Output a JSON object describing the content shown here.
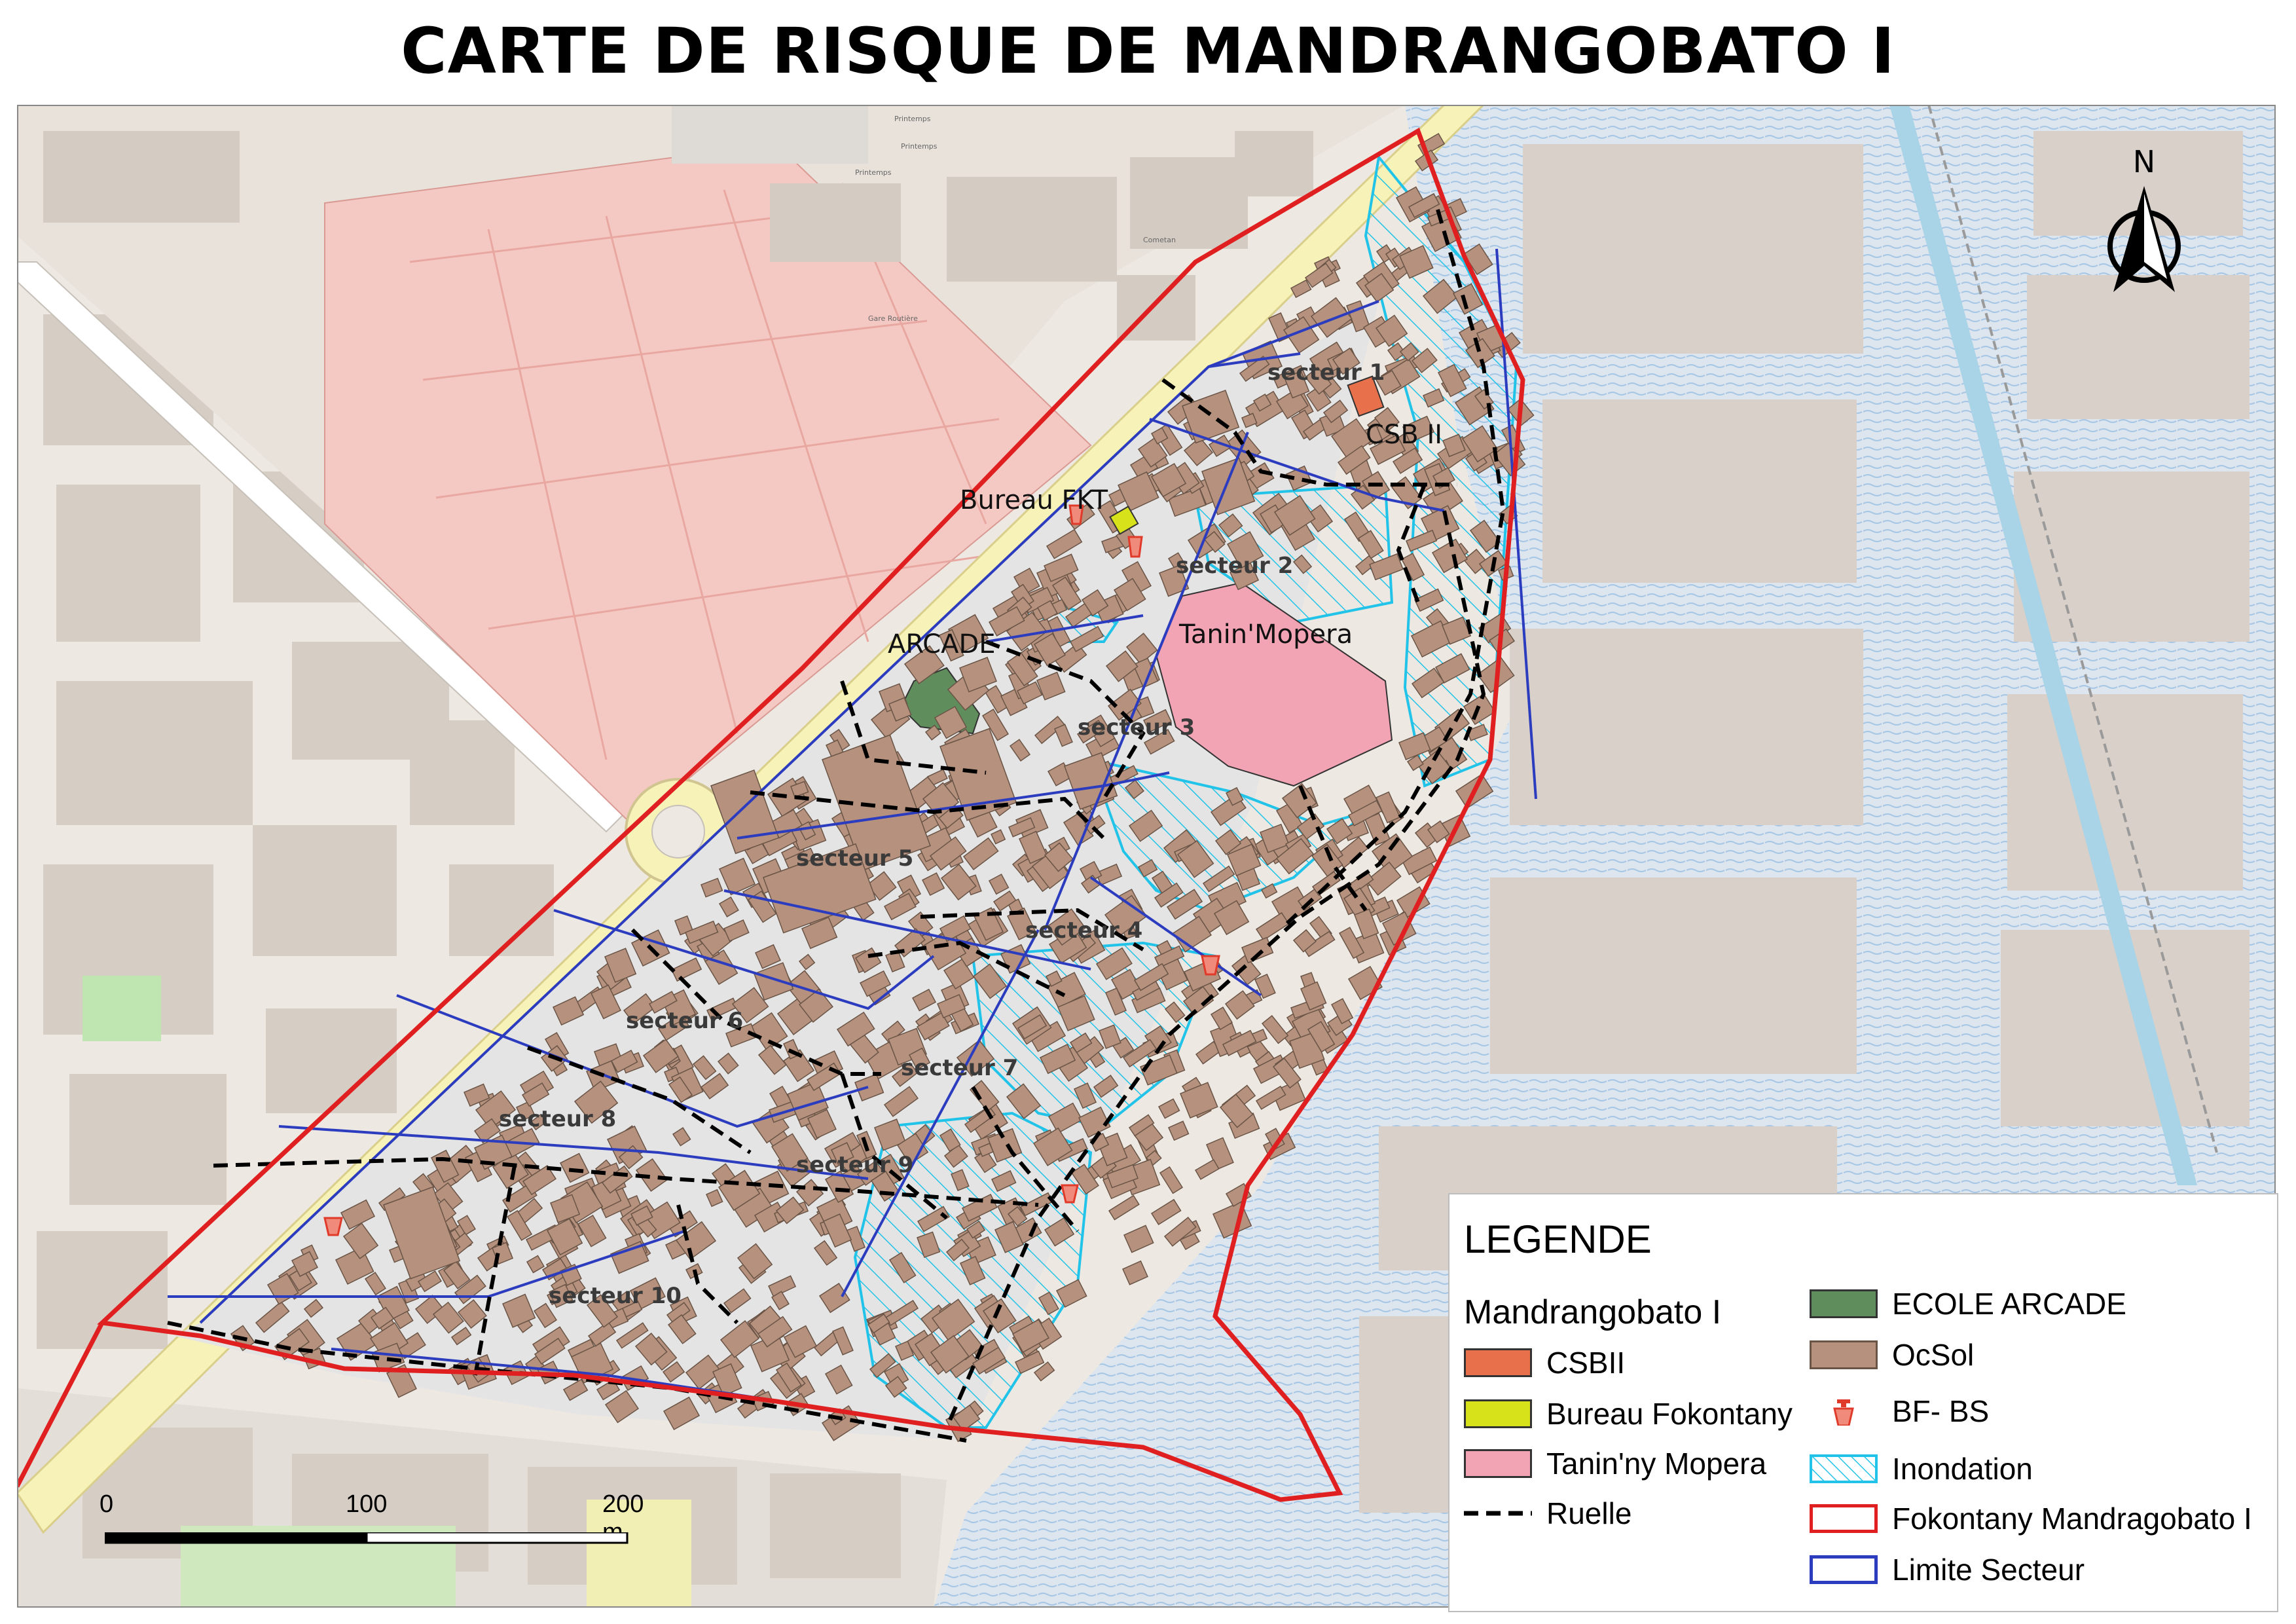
{
  "title": "CARTE DE RISQUE DE MANDRANGOBATO I",
  "colors": {
    "csb": "#e8704a",
    "bureau": "#d8e21a",
    "tanin": "#f2a3b4",
    "ecole": "#5f8d5c",
    "ocsol": "#b5917e",
    "inondation": "#21c4e8",
    "fokontany": "#e02020",
    "secteur": "#2c3cbf",
    "ruelle": "#000000"
  },
  "map_labels": {
    "secteur1": "secteur 1",
    "secteur2": "secteur 2",
    "secteur3": "secteur 3",
    "secteur4": "secteur 4",
    "secteur5": "secteur 5",
    "secteur6": "secteur 6",
    "secteur7": "secteur 7",
    "secteur8": "secteur 8",
    "secteur9": "secteur 9",
    "secteur10": "secteur 10",
    "csb": "CSB II",
    "bureau": "Bureau FKT",
    "arcade": "ARCADE",
    "tanin": "Tanin'Mopera"
  },
  "legend": {
    "title": "LEGENDE",
    "group": "Mandrangobato I",
    "items": [
      {
        "label": "CSBII"
      },
      {
        "label": "Bureau Fokontany"
      },
      {
        "label": "Tanin'ny Mopera"
      },
      {
        "label": "Ruelle"
      },
      {
        "label": "ECOLE ARCADE"
      },
      {
        "label": "OcSol"
      },
      {
        "label": "BF- BS"
      },
      {
        "label": "Inondation"
      },
      {
        "label": "Fokontany Mandragobato I"
      },
      {
        "label": "Limite Secteur"
      }
    ]
  },
  "scalebar": {
    "labels": [
      "0",
      "100",
      "200 m"
    ]
  },
  "north": {
    "label": "N"
  }
}
